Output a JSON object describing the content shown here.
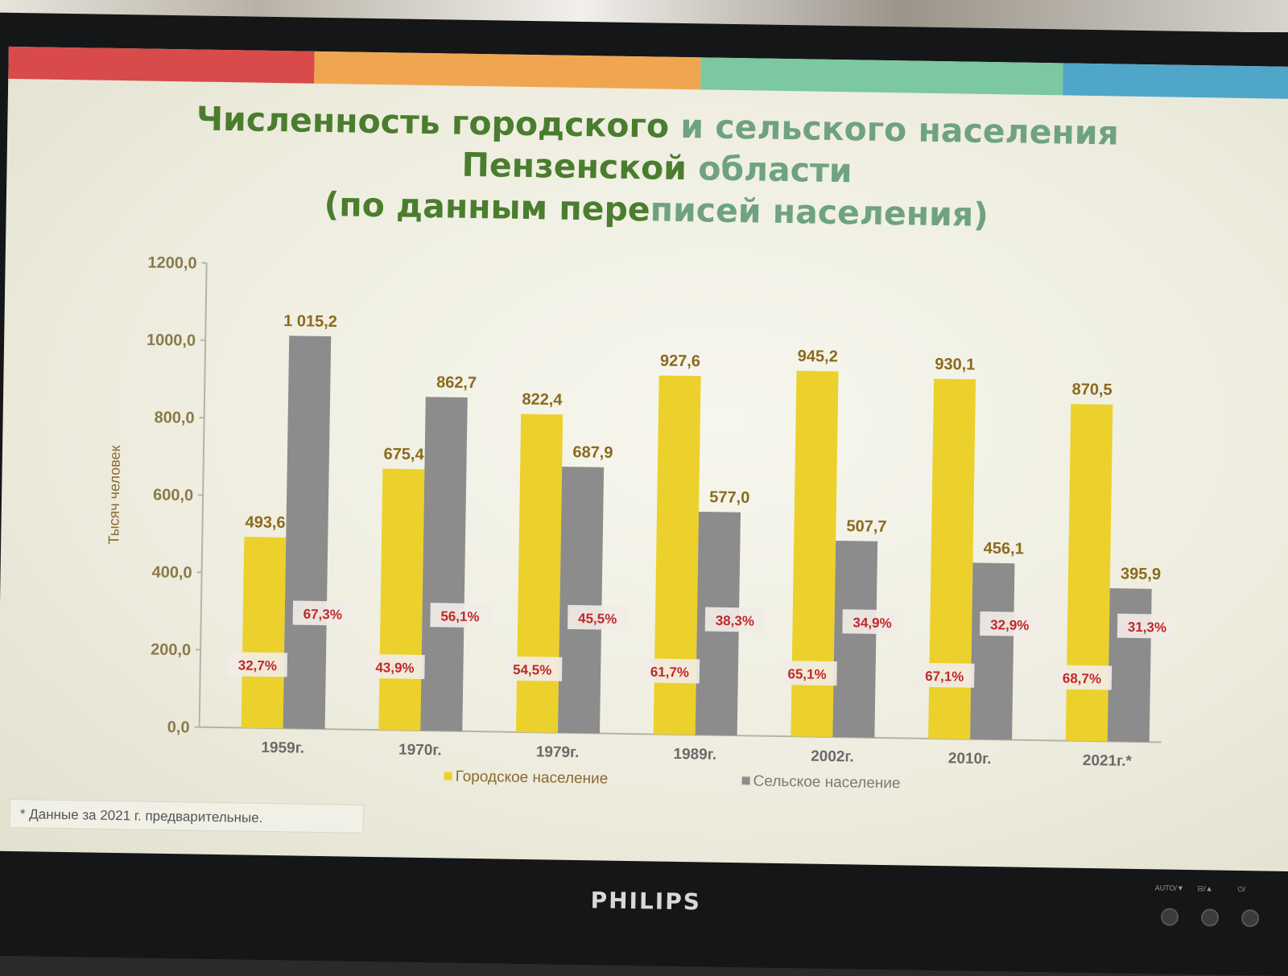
{
  "slide": {
    "title_line1_part1": "Численность городского ",
    "title_line1_part2": "и сельского населения",
    "title_line2_part1": "Пензенской ",
    "title_line2_part2": "области",
    "title_line3_part1": "(по данным пере",
    "title_line3_part2": "писей населения)",
    "footnote": "* Данные за 2021 г. предварительные.",
    "stripe_colors": [
      "#d94a4a",
      "#f0a650",
      "#eaeadc",
      "#7cc8a0",
      "#4fa6c8"
    ],
    "title_colors": {
      "dark": "#4a7d2e",
      "light": "#6fa37f"
    }
  },
  "monitor": {
    "brand": "PHILIPS",
    "controls": [
      "AUTO/▼",
      "⊟/▲",
      "⏻/"
    ]
  },
  "chart_data": {
    "type": "bar",
    "title": "Численность городского и сельского населения Пензенской области (по данным переписей населения)",
    "ylabel": "Тысяч человек",
    "ylim": [
      0,
      1200
    ],
    "yticks": [
      "0,0",
      "200,0",
      "400,0",
      "600,0",
      "800,0",
      "1000,0",
      "1200,0"
    ],
    "categories": [
      "1959г.",
      "1970г.",
      "1979г.",
      "1989г.",
      "2002г.",
      "2010г.",
      "2021г.*"
    ],
    "series": [
      {
        "name": "Городское население",
        "color": "#ecd12c",
        "values": [
          493.6,
          675.4,
          822.4,
          927.6,
          945.2,
          930.1,
          870.5
        ],
        "labels": [
          "493,6",
          "675,4",
          "822,4",
          "927,6",
          "945,2",
          "930,1",
          "870,5"
        ],
        "shares": [
          "32,7%",
          "43,9%",
          "54,5%",
          "61,7%",
          "65,1%",
          "67,1%",
          "68,7%"
        ]
      },
      {
        "name": "Сельское население",
        "color": "#8c8c8c",
        "values": [
          1015.2,
          862.7,
          687.9,
          577.0,
          507.7,
          456.1,
          395.9
        ],
        "labels": [
          "1 015,2",
          "862,7",
          "687,9",
          "577,0",
          "507,7",
          "456,1",
          "395,9"
        ],
        "shares": [
          "67,3%",
          "56,1%",
          "45,5%",
          "38,3%",
          "34,9%",
          "32,9%",
          "31,3%"
        ]
      }
    ],
    "value_label_color": "#8a6a1e",
    "share_label_color": "#c0282d",
    "legend_position": "bottom"
  }
}
